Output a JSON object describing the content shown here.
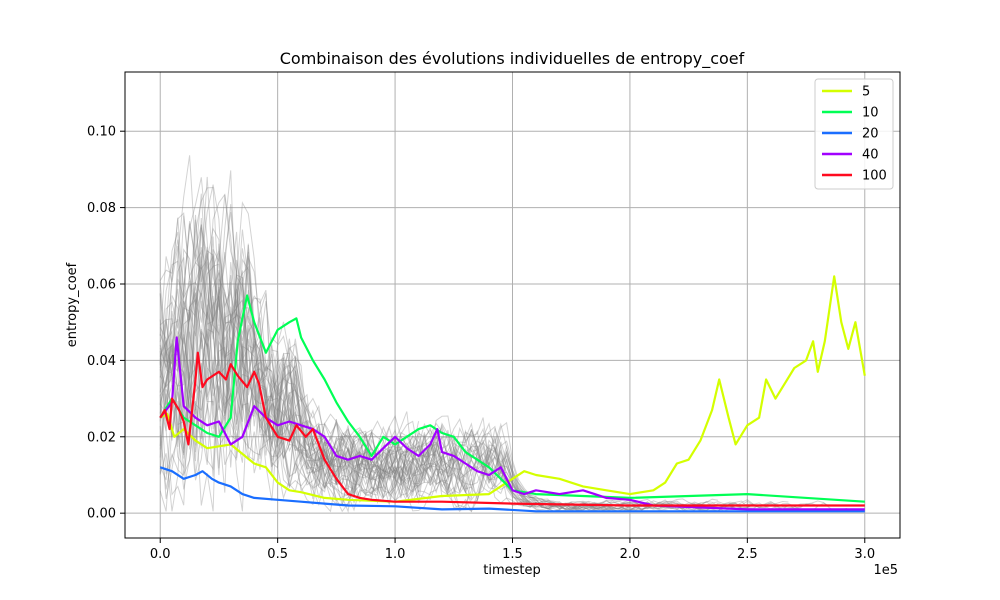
{
  "chart_data": {
    "type": "line",
    "title": "Combinaison des évolutions individuelles de entropy_coef",
    "xlabel": "timestep",
    "ylabel": "entropy_coef",
    "x_offset_label": "1e5",
    "xlim": [
      -15000,
      315000
    ],
    "ylim": [
      -0.0065,
      0.1155
    ],
    "x_ticks": [
      0,
      50000,
      100000,
      150000,
      200000,
      250000,
      300000
    ],
    "x_tick_labels": [
      "0.0",
      "0.5",
      "1.0",
      "1.5",
      "2.0",
      "2.5",
      "3.0"
    ],
    "y_ticks": [
      0,
      0.02,
      0.04,
      0.06,
      0.08,
      0.1
    ],
    "y_tick_labels": [
      "0.00",
      "0.02",
      "0.04",
      "0.06",
      "0.08",
      "0.10"
    ],
    "grid": true,
    "legend_position": "top-right",
    "background_runs_color": "#808080",
    "series": [
      {
        "name": "5",
        "color": "#d4ff00",
        "points": [
          [
            0,
            0.025
          ],
          [
            3000,
            0.026
          ],
          [
            6000,
            0.02
          ],
          [
            10000,
            0.022
          ],
          [
            15000,
            0.019
          ],
          [
            20000,
            0.017
          ],
          [
            30000,
            0.018
          ],
          [
            40000,
            0.013
          ],
          [
            45000,
            0.012
          ],
          [
            50000,
            0.008
          ],
          [
            55000,
            0.006
          ],
          [
            60000,
            0.0055
          ],
          [
            70000,
            0.004
          ],
          [
            80000,
            0.0035
          ],
          [
            100000,
            0.003
          ],
          [
            120000,
            0.0045
          ],
          [
            140000,
            0.005
          ],
          [
            150000,
            0.009
          ],
          [
            155000,
            0.011
          ],
          [
            160000,
            0.01
          ],
          [
            170000,
            0.009
          ],
          [
            180000,
            0.007
          ],
          [
            190000,
            0.006
          ],
          [
            200000,
            0.005
          ],
          [
            210000,
            0.006
          ],
          [
            215000,
            0.008
          ],
          [
            220000,
            0.013
          ],
          [
            225000,
            0.014
          ],
          [
            230000,
            0.019
          ],
          [
            235000,
            0.027
          ],
          [
            238000,
            0.035
          ],
          [
            242000,
            0.025
          ],
          [
            245000,
            0.018
          ],
          [
            250000,
            0.023
          ],
          [
            255000,
            0.025
          ],
          [
            258000,
            0.035
          ],
          [
            262000,
            0.03
          ],
          [
            265000,
            0.033
          ],
          [
            270000,
            0.038
          ],
          [
            275000,
            0.04
          ],
          [
            278000,
            0.045
          ],
          [
            280000,
            0.037
          ],
          [
            283000,
            0.045
          ],
          [
            287000,
            0.062
          ],
          [
            290000,
            0.05
          ],
          [
            293000,
            0.043
          ],
          [
            296000,
            0.05
          ],
          [
            300000,
            0.036
          ]
        ]
      },
      {
        "name": "10",
        "color": "#00ff55",
        "points": [
          [
            0,
            0.025
          ],
          [
            5000,
            0.03
          ],
          [
            10000,
            0.025
          ],
          [
            20000,
            0.021
          ],
          [
            25000,
            0.02
          ],
          [
            30000,
            0.025
          ],
          [
            33000,
            0.045
          ],
          [
            37000,
            0.057
          ],
          [
            40000,
            0.05
          ],
          [
            45000,
            0.042
          ],
          [
            50000,
            0.048
          ],
          [
            55000,
            0.05
          ],
          [
            58000,
            0.051
          ],
          [
            60000,
            0.046
          ],
          [
            65000,
            0.04
          ],
          [
            70000,
            0.035
          ],
          [
            75000,
            0.029
          ],
          [
            80000,
            0.024
          ],
          [
            85000,
            0.02
          ],
          [
            90000,
            0.015
          ],
          [
            95000,
            0.02
          ],
          [
            100000,
            0.018
          ],
          [
            105000,
            0.02
          ],
          [
            110000,
            0.022
          ],
          [
            115000,
            0.023
          ],
          [
            120000,
            0.021
          ],
          [
            125000,
            0.02
          ],
          [
            130000,
            0.016
          ],
          [
            135000,
            0.014
          ],
          [
            140000,
            0.012
          ],
          [
            145000,
            0.009
          ],
          [
            150000,
            0.006
          ],
          [
            160000,
            0.005
          ],
          [
            200000,
            0.004
          ],
          [
            250000,
            0.005
          ],
          [
            300000,
            0.003
          ]
        ]
      },
      {
        "name": "20",
        "color": "#1a6eff",
        "points": [
          [
            0,
            0.012
          ],
          [
            5000,
            0.011
          ],
          [
            10000,
            0.009
          ],
          [
            15000,
            0.01
          ],
          [
            18000,
            0.011
          ],
          [
            22000,
            0.009
          ],
          [
            25000,
            0.008
          ],
          [
            30000,
            0.007
          ],
          [
            35000,
            0.005
          ],
          [
            40000,
            0.004
          ],
          [
            50000,
            0.0035
          ],
          [
            60000,
            0.003
          ],
          [
            70000,
            0.0025
          ],
          [
            80000,
            0.002
          ],
          [
            100000,
            0.0018
          ],
          [
            120000,
            0.001
          ],
          [
            140000,
            0.0012
          ],
          [
            160000,
            0.0005
          ],
          [
            200000,
            0.0005
          ],
          [
            300000,
            0.0005
          ]
        ]
      },
      {
        "name": "40",
        "color": "#a100ff",
        "points": [
          [
            0,
            0.025
          ],
          [
            5000,
            0.029
          ],
          [
            7000,
            0.046
          ],
          [
            10000,
            0.028
          ],
          [
            15000,
            0.025
          ],
          [
            20000,
            0.023
          ],
          [
            25000,
            0.024
          ],
          [
            30000,
            0.018
          ],
          [
            35000,
            0.02
          ],
          [
            40000,
            0.028
          ],
          [
            45000,
            0.025
          ],
          [
            50000,
            0.023
          ],
          [
            55000,
            0.024
          ],
          [
            60000,
            0.023
          ],
          [
            65000,
            0.022
          ],
          [
            70000,
            0.02
          ],
          [
            75000,
            0.015
          ],
          [
            80000,
            0.014
          ],
          [
            85000,
            0.015
          ],
          [
            90000,
            0.014
          ],
          [
            95000,
            0.017
          ],
          [
            100000,
            0.02
          ],
          [
            105000,
            0.017
          ],
          [
            110000,
            0.015
          ],
          [
            115000,
            0.018
          ],
          [
            118000,
            0.022
          ],
          [
            120000,
            0.016
          ],
          [
            125000,
            0.015
          ],
          [
            130000,
            0.013
          ],
          [
            135000,
            0.011
          ],
          [
            140000,
            0.01
          ],
          [
            145000,
            0.012
          ],
          [
            150000,
            0.006
          ],
          [
            155000,
            0.005
          ],
          [
            160000,
            0.006
          ],
          [
            170000,
            0.005
          ],
          [
            180000,
            0.006
          ],
          [
            185000,
            0.005
          ],
          [
            190000,
            0.004
          ],
          [
            200000,
            0.0035
          ],
          [
            210000,
            0.002
          ],
          [
            250000,
            0.001
          ],
          [
            300000,
            0.001
          ]
        ]
      },
      {
        "name": "100",
        "color": "#ff0a1f",
        "points": [
          [
            0,
            0.025
          ],
          [
            2000,
            0.027
          ],
          [
            4000,
            0.022
          ],
          [
            5000,
            0.03
          ],
          [
            8000,
            0.027
          ],
          [
            10000,
            0.024
          ],
          [
            12000,
            0.018
          ],
          [
            15000,
            0.035
          ],
          [
            16000,
            0.042
          ],
          [
            18000,
            0.033
          ],
          [
            20000,
            0.035
          ],
          [
            25000,
            0.037
          ],
          [
            28000,
            0.035
          ],
          [
            30000,
            0.039
          ],
          [
            33000,
            0.036
          ],
          [
            37000,
            0.033
          ],
          [
            40000,
            0.037
          ],
          [
            42000,
            0.034
          ],
          [
            45000,
            0.025
          ],
          [
            50000,
            0.02
          ],
          [
            55000,
            0.019
          ],
          [
            58000,
            0.023
          ],
          [
            62000,
            0.02
          ],
          [
            65000,
            0.022
          ],
          [
            70000,
            0.014
          ],
          [
            75000,
            0.009
          ],
          [
            80000,
            0.005
          ],
          [
            85000,
            0.004
          ],
          [
            90000,
            0.0035
          ],
          [
            100000,
            0.003
          ],
          [
            120000,
            0.003
          ],
          [
            150000,
            0.0025
          ],
          [
            200000,
            0.002
          ],
          [
            250000,
            0.002
          ],
          [
            300000,
            0.002
          ]
        ]
      }
    ]
  }
}
